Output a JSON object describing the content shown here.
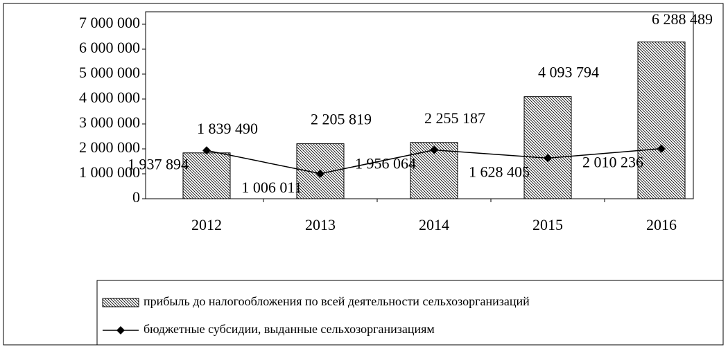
{
  "chart_data": {
    "type": "bar_line",
    "categories": [
      "2012",
      "2013",
      "2014",
      "2015",
      "2016"
    ],
    "series": [
      {
        "name": "прибыль до налогообложения по всей деятельности сельхозорганизаций",
        "type": "bar",
        "color": "#000000",
        "values": [
          1839490,
          2205819,
          2255187,
          4093794,
          6288489
        ],
        "value_labels": [
          "1 839 490",
          "2 205 819",
          "2 255 187",
          "4 093 794",
          "6 288 489"
        ]
      },
      {
        "name": "бюджетные субсидии, выданные сельхозорганизациям",
        "type": "line",
        "color": "#000000",
        "values": [
          1937894,
          1006011,
          1956064,
          1628405,
          2010236
        ],
        "value_labels": [
          "1 937 894",
          "1 006 011",
          "1 956 064",
          "1 628 405",
          "2 010 236"
        ]
      }
    ],
    "ylim": [
      0,
      7000000
    ],
    "yticks": [
      0,
      {
        "value": 1000000,
        "label": "1 000 000"
      },
      {
        "value": 2000000,
        "label": "2 000 000"
      },
      {
        "value": 3000000,
        "label": "3 000 000"
      },
      {
        "value": 4000000,
        "label": "4 000 000"
      },
      {
        "value": 5000000,
        "label": "5 000 000"
      },
      {
        "value": 6000000,
        "label": "6 000 000"
      },
      {
        "value": 7000000,
        "label": "7 000 000"
      }
    ],
    "legend": "bottom"
  }
}
